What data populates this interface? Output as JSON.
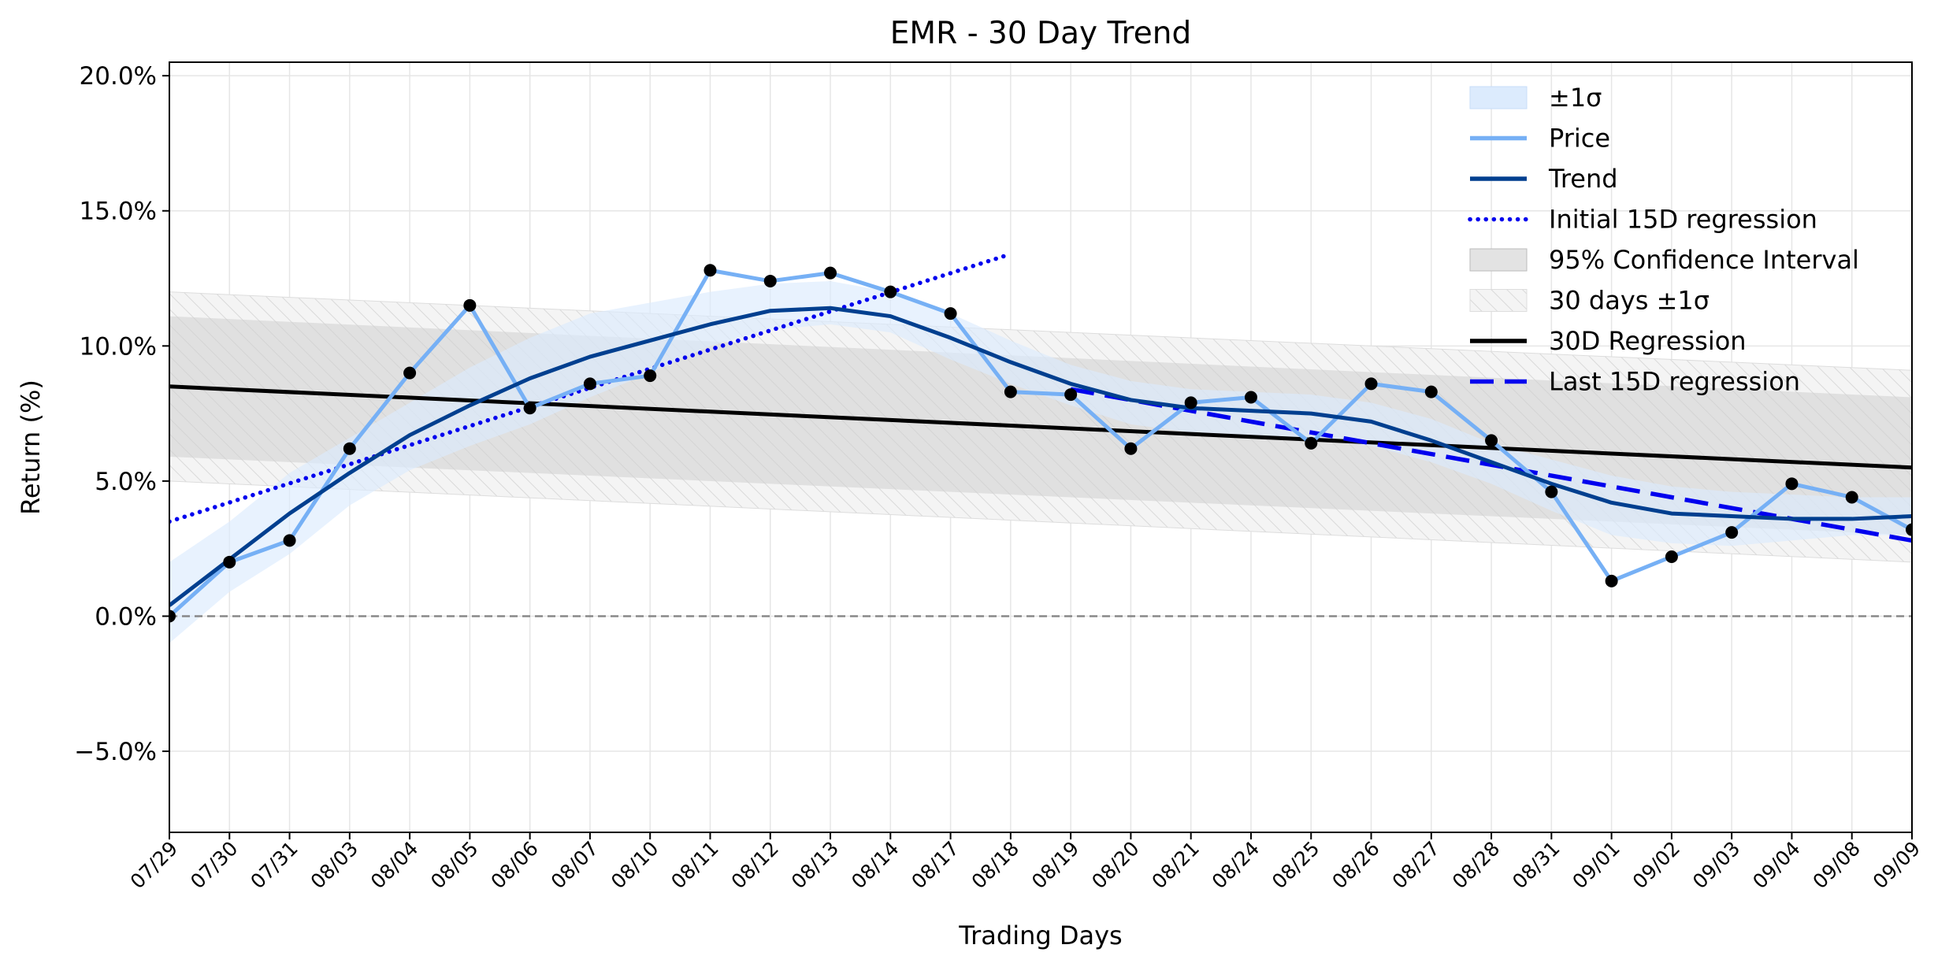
{
  "chart_data": {
    "type": "line",
    "title": "EMR - 30 Day Trend",
    "xlabel": "Trading Days",
    "ylabel": "Return (%)",
    "ylim": [
      -8.0,
      20.5
    ],
    "yticks": [
      -5.0,
      0.0,
      5.0,
      10.0,
      15.0,
      20.0
    ],
    "ytick_labels": [
      "−5.0%",
      "0.0%",
      "5.0%",
      "10.0%",
      "15.0%",
      "20.0%"
    ],
    "grid": true,
    "legend_position": "top-right",
    "categories": [
      "07/29",
      "07/30",
      "07/31",
      "08/03",
      "08/04",
      "08/05",
      "08/06",
      "08/07",
      "08/10",
      "08/11",
      "08/12",
      "08/13",
      "08/14",
      "08/17",
      "08/18",
      "08/19",
      "08/20",
      "08/21",
      "08/24",
      "08/25",
      "08/26",
      "08/27",
      "08/28",
      "08/31",
      "09/01",
      "09/02",
      "09/03",
      "09/04",
      "09/08",
      "09/09"
    ],
    "series": [
      {
        "name": "Price",
        "color": "#76b0f5",
        "values": [
          0.0,
          2.0,
          2.8,
          6.2,
          9.0,
          11.5,
          7.7,
          8.6,
          8.9,
          12.8,
          12.4,
          12.7,
          12.0,
          11.2,
          8.3,
          8.2,
          6.2,
          7.9,
          8.1,
          6.4,
          8.6,
          8.3,
          6.5,
          4.6,
          1.3,
          2.2,
          3.1,
          4.9,
          4.4,
          3.2
        ]
      },
      {
        "name": "Trend",
        "color": "#003f8f",
        "values": [
          0.4,
          2.1,
          3.8,
          5.3,
          6.7,
          7.8,
          8.8,
          9.6,
          10.2,
          10.8,
          11.3,
          11.4,
          11.1,
          10.3,
          9.4,
          8.6,
          8.0,
          7.7,
          7.6,
          7.5,
          7.2,
          6.5,
          5.7,
          4.9,
          4.2,
          3.8,
          3.7,
          3.6,
          3.6,
          3.7
        ]
      },
      {
        "name": "Initial 15D regression",
        "color": "#0000ee",
        "style": "dotted",
        "range": [
          0,
          14
        ],
        "endpoints": [
          3.5,
          13.4
        ]
      },
      {
        "name": "30D Regression",
        "color": "#000000",
        "style": "solid",
        "range": [
          0,
          29
        ],
        "endpoints": [
          8.5,
          5.5
        ]
      },
      {
        "name": "Last 15D regression",
        "color": "#0000ee",
        "style": "dashed",
        "range": [
          15,
          29
        ],
        "endpoints": [
          8.4,
          2.8
        ]
      }
    ],
    "bands": [
      {
        "name": "±1σ",
        "color": "#dcebfd",
        "lower": [
          -1.0,
          0.9,
          2.3,
          4.1,
          5.4,
          6.3,
          7.1,
          8.1,
          9.0,
          10.0,
          10.6,
          10.8,
          10.5,
          9.5,
          8.6,
          7.8,
          7.1,
          6.8,
          6.7,
          6.6,
          6.3,
          5.7,
          4.9,
          3.9,
          3.0,
          2.7,
          2.6,
          2.8,
          3.0,
          3.0
        ],
        "upper": [
          2.0,
          3.5,
          5.3,
          6.6,
          7.9,
          9.2,
          10.3,
          11.2,
          11.6,
          12.0,
          12.3,
          12.4,
          12.0,
          11.2,
          10.2,
          9.3,
          8.7,
          8.4,
          8.3,
          8.2,
          7.9,
          7.3,
          6.4,
          5.8,
          5.2,
          4.8,
          4.6,
          4.5,
          4.4,
          4.4
        ]
      },
      {
        "name": "95% Confidence Interval",
        "color": "#cfcfcf",
        "lower_endpoints": [
          5.9,
          3.0
        ],
        "upper_endpoints": [
          11.1,
          8.1
        ]
      },
      {
        "name": "30 days ±1σ",
        "color": "#f2f2f2",
        "hatched": true,
        "lower_endpoints": [
          5.0,
          2.0
        ],
        "upper_endpoints": [
          12.0,
          9.1
        ]
      }
    ],
    "reference_line": {
      "y": 0.0,
      "style": "dashed",
      "color": "#888888"
    },
    "legend": [
      "±1σ",
      "Price",
      "Trend",
      "Initial 15D regression",
      "95% Confidence Interval",
      "30 days ±1σ",
      "30D Regression",
      "Last 15D regression"
    ]
  }
}
